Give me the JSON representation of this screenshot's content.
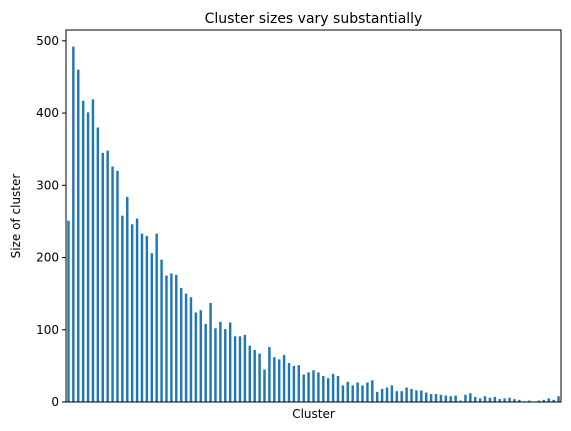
{
  "chart_data": {
    "type": "bar",
    "title": "Cluster sizes vary substantially",
    "xlabel": "Cluster",
    "ylabel": "Size of cluster",
    "ylim": [
      0,
      515
    ],
    "yticks": [
      0,
      100,
      200,
      300,
      400,
      500
    ],
    "ytick_labels": [
      "0",
      "100",
      "200",
      "300",
      "400",
      "500"
    ],
    "x_tick_labels_shown": false,
    "grid": false,
    "legend": "none",
    "bar_color": "#1f77b4",
    "values": [
      251,
      492,
      460,
      417,
      401,
      419,
      380,
      345,
      348,
      326,
      320,
      258,
      284,
      246,
      254,
      233,
      230,
      206,
      233,
      197,
      175,
      178,
      176,
      158,
      150,
      145,
      124,
      127,
      108,
      137,
      102,
      111,
      101,
      110,
      91,
      91,
      93,
      78,
      72,
      67,
      45,
      76,
      62,
      59,
      65,
      54,
      50,
      51,
      38,
      41,
      44,
      41,
      36,
      33,
      39,
      36,
      23,
      28,
      23,
      27,
      23,
      27,
      30,
      14,
      18,
      20,
      23,
      15,
      15,
      20,
      18,
      16,
      16,
      13,
      11,
      11,
      10,
      9,
      8,
      9,
      2,
      10,
      12,
      7,
      5,
      8,
      6,
      7,
      4,
      5,
      6,
      4,
      3,
      1,
      2,
      0,
      2,
      3,
      5,
      3,
      8
    ]
  }
}
